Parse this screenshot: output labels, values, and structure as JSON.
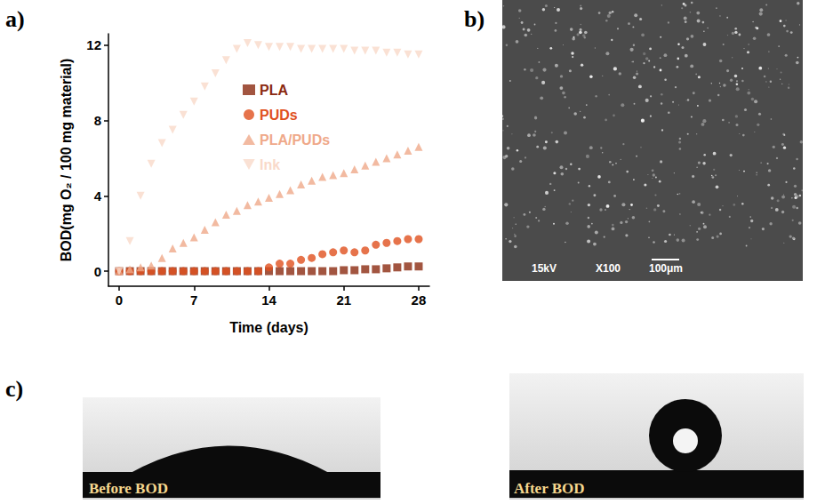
{
  "chart_data": {
    "type": "scatter",
    "x_label": "Time (days)",
    "y_label": "BOD(mg O₂ / 100 mg material)",
    "x": [
      0,
      1,
      2,
      3,
      4,
      5,
      6,
      7,
      8,
      9,
      10,
      11,
      12,
      13,
      14,
      15,
      16,
      17,
      18,
      19,
      20,
      21,
      22,
      23,
      24,
      25,
      26,
      27,
      28
    ],
    "series": [
      {
        "name": "PLA",
        "color": "#8b2a10",
        "marker": "square",
        "values": [
          0,
          0,
          0,
          0,
          0,
          0,
          0,
          0,
          0,
          0,
          0,
          0,
          0,
          0,
          0,
          0,
          0,
          0,
          0,
          0,
          0,
          0.05,
          0.05,
          0.1,
          0.1,
          0.15,
          0.2,
          0.25,
          0.25
        ]
      },
      {
        "name": "PUDs",
        "color": "#e0501e",
        "marker": "circle",
        "values": [
          0,
          0,
          0,
          0,
          0,
          0,
          0,
          0,
          0,
          0,
          0,
          0,
          0,
          0,
          0.2,
          0.4,
          0.4,
          0.6,
          0.7,
          0.9,
          1.0,
          1.1,
          1.0,
          1.1,
          1.4,
          1.5,
          1.6,
          1.7,
          1.7
        ]
      },
      {
        "name": "PLA/PUDs",
        "color": "#efa98a",
        "marker": "triangle-up",
        "values": [
          0,
          0.1,
          0.2,
          0.3,
          0.7,
          1.2,
          1.5,
          1.8,
          2.2,
          2.6,
          3.0,
          3.2,
          3.5,
          3.7,
          3.9,
          4.1,
          4.3,
          4.6,
          4.8,
          5.0,
          5.1,
          5.2,
          5.4,
          5.6,
          5.8,
          6.0,
          6.2,
          6.4,
          6.6
        ]
      },
      {
        "name": "Ink",
        "color": "#f9d9c9",
        "marker": "triangle-down",
        "values": [
          0,
          1.6,
          4.0,
          5.7,
          6.8,
          7.5,
          8.3,
          9.0,
          9.8,
          10.5,
          11.2,
          11.8,
          12.1,
          12.0,
          11.9,
          11.9,
          11.9,
          11.8,
          11.8,
          11.8,
          11.8,
          11.8,
          11.7,
          11.7,
          11.7,
          11.6,
          11.6,
          11.5,
          11.5
        ]
      }
    ],
    "xlim": [
      -1,
      29
    ],
    "xticks": [
      0,
      7,
      14,
      21,
      28
    ],
    "ylim": [
      -0.8,
      12.6
    ],
    "yticks": [
      0,
      4,
      8,
      12
    ],
    "grid": false,
    "legend": "upper center"
  },
  "figure": {
    "panel_labels": [
      "a)",
      "b)",
      "c)"
    ],
    "sem": {
      "voltage": "15kV",
      "magnification": "X100",
      "scale_bar": "100μm"
    },
    "contact_angle": {
      "before": "Before BOD",
      "after": "After BOD"
    }
  }
}
